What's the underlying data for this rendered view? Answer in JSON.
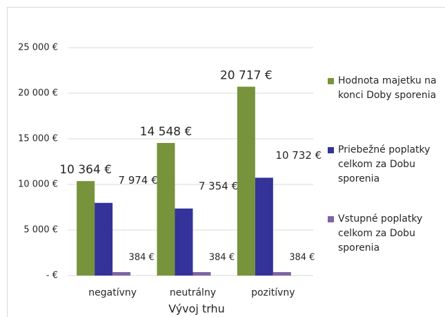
{
  "chart_data": {
    "type": "bar",
    "categories": [
      "negatívny",
      "neutrálny",
      "pozitívny"
    ],
    "x_label": "Vývoj trhu",
    "series": [
      {
        "name": "Hodnota majetku na konci Doby sporenia",
        "color": "#77933c",
        "values": [
          10364,
          14548,
          20717
        ],
        "value_labels": [
          "10 364 €",
          "14 548 €",
          "20 717 €"
        ]
      },
      {
        "name": "Priebežné poplatky celkom za Dobu sporenia",
        "color": "#333399",
        "values": [
          7974,
          7354,
          10732
        ],
        "value_labels": [
          "7 974 €",
          "7 354 €",
          "10 732 €"
        ]
      },
      {
        "name": "Vstupné poplatky celkom za Dobu sporenia",
        "color": "#8064a2",
        "values": [
          384,
          384,
          384
        ],
        "value_labels": [
          "384 €",
          "384 €",
          "384 €"
        ]
      }
    ],
    "ylim": [
      0,
      25000
    ],
    "yticks": [
      {
        "value": 0,
        "label": "- €"
      },
      {
        "value": 5000,
        "label": "5 000 €"
      },
      {
        "value": 10000,
        "label": "10 000 €"
      },
      {
        "value": 15000,
        "label": "15 000 €"
      },
      {
        "value": 20000,
        "label": "20 000 €"
      },
      {
        "value": 25000,
        "label": "25 000 €"
      }
    ],
    "grid": true,
    "legend": "right"
  }
}
